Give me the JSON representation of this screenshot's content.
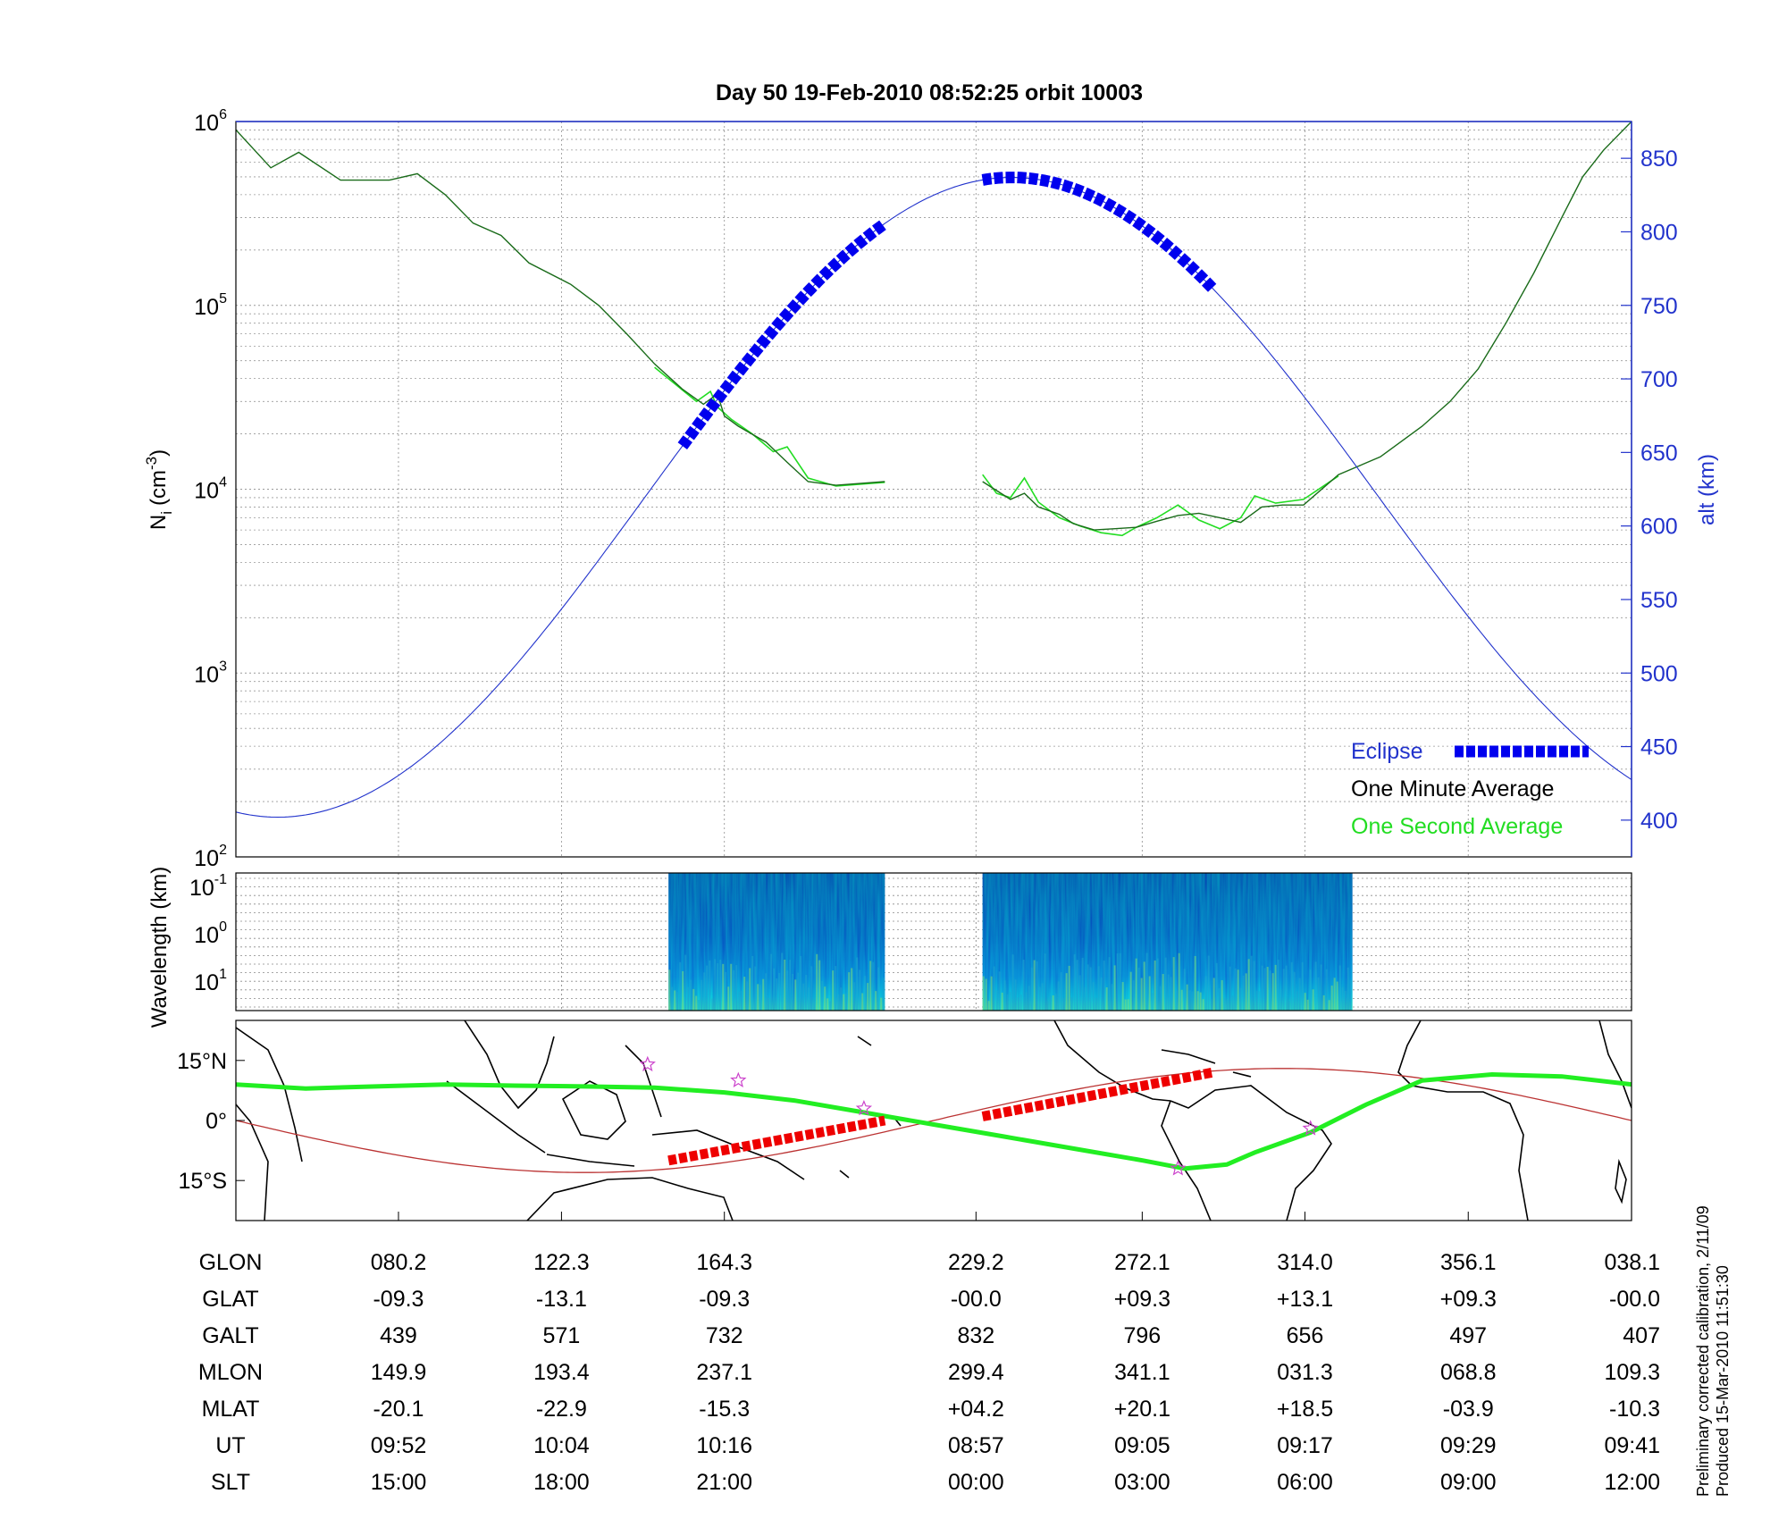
{
  "title": "Day 50  19-Feb-2010 08:52:25   orbit 10003",
  "credit": [
    "Preliminary corrected calibration, 2/11/09",
    "Produced 15-Mar-2010 11:51:30"
  ],
  "colors": {
    "density": "#1a6b1a",
    "density_fine": "#22dd22",
    "altitude": "#2233cc",
    "eclipse": "#0000ee",
    "track": "#22ee22",
    "eclipse_track": "#ee0000",
    "mag_equator": "#bb3333",
    "star": "#cc44cc"
  },
  "chart_data": [
    {
      "type": "line",
      "name": "density-altitude-panel",
      "ylabel_left": "N",
      "ylabel_left_sub": "i",
      "ylabel_left_unit_a": "(cm",
      "ylabel_left_unit_sup": "-3",
      "ylabel_left_unit_b": ")",
      "ylabel_right": "alt (km)",
      "y_left_scale": "log",
      "y_left_range": [
        100,
        1000000
      ],
      "y_left_ticks": [
        {
          "base": "10",
          "exp": "2",
          "value": 100
        },
        {
          "base": "10",
          "exp": "3",
          "value": 1000
        },
        {
          "base": "10",
          "exp": "4",
          "value": 10000
        },
        {
          "base": "10",
          "exp": "5",
          "value": 100000
        },
        {
          "base": "10",
          "exp": "6",
          "value": 1000000
        }
      ],
      "y_right_range": [
        375,
        875
      ],
      "y_right_ticks": [
        "400",
        "450",
        "500",
        "550",
        "600",
        "650",
        "700",
        "750",
        "800",
        "850"
      ],
      "x_range": [
        0,
        1
      ],
      "x_grid": [
        0.1165,
        0.2333,
        0.35,
        0.5303,
        0.6494,
        0.766,
        0.883
      ],
      "gap": [
        0.465,
        0.535
      ],
      "legend": {
        "placement": "bottom-right",
        "eclipse": "Eclipse",
        "minute": "One Minute Average",
        "second": "One Second Average"
      },
      "series": [
        {
          "name": "One Minute Average",
          "scale": "log-density",
          "segments": [
            [
              [
                0.0,
                900000
              ],
              [
                0.025,
                560000
              ],
              [
                0.045,
                680000
              ],
              [
                0.075,
                480000
              ],
              [
                0.11,
                480000
              ],
              [
                0.13,
                520000
              ],
              [
                0.15,
                400000
              ],
              [
                0.17,
                280000
              ],
              [
                0.19,
                240000
              ],
              [
                0.21,
                170000
              ],
              [
                0.24,
                130000
              ],
              [
                0.26,
                100000
              ],
              [
                0.28,
                70000
              ],
              [
                0.3,
                48000
              ],
              [
                0.32,
                35000
              ],
              [
                0.335,
                29000
              ],
              [
                0.345,
                33000
              ],
              [
                0.35,
                25000
              ],
              [
                0.36,
                22000
              ],
              [
                0.38,
                18000
              ],
              [
                0.395,
                14000
              ],
              [
                0.41,
                11000
              ],
              [
                0.43,
                10500
              ],
              [
                0.465,
                11000
              ]
            ],
            [
              [
                0.535,
                11000
              ],
              [
                0.555,
                8800
              ],
              [
                0.565,
                9500
              ],
              [
                0.575,
                8000
              ],
              [
                0.59,
                7300
              ],
              [
                0.6,
                6500
              ],
              [
                0.615,
                6000
              ],
              [
                0.63,
                6100
              ],
              [
                0.645,
                6200
              ],
              [
                0.66,
                6700
              ],
              [
                0.675,
                7200
              ],
              [
                0.69,
                7400
              ],
              [
                0.705,
                7000
              ],
              [
                0.72,
                6600
              ],
              [
                0.735,
                8000
              ],
              [
                0.75,
                8200
              ],
              [
                0.765,
                8200
              ],
              [
                0.79,
                12000
              ],
              [
                0.82,
                15000
              ],
              [
                0.85,
                22000
              ],
              [
                0.87,
                30000
              ],
              [
                0.89,
                45000
              ],
              [
                0.91,
                80000
              ],
              [
                0.93,
                150000
              ],
              [
                0.95,
                300000
              ],
              [
                0.965,
                500000
              ],
              [
                0.98,
                700000
              ],
              [
                1.0,
                1000000
              ]
            ]
          ]
        },
        {
          "name": "One Second Average",
          "scale": "log-density",
          "segments": [
            [
              [
                0.3,
                46000
              ],
              [
                0.33,
                30000
              ],
              [
                0.34,
                34000
              ],
              [
                0.345,
                28000
              ],
              [
                0.355,
                24000
              ],
              [
                0.37,
                20000
              ],
              [
                0.385,
                16000
              ],
              [
                0.395,
                17000
              ],
              [
                0.41,
                11500
              ],
              [
                0.43,
                10400
              ],
              [
                0.465,
                10900
              ]
            ],
            [
              [
                0.535,
                12000
              ],
              [
                0.545,
                9500
              ],
              [
                0.555,
                9000
              ],
              [
                0.565,
                11500
              ],
              [
                0.575,
                8500
              ],
              [
                0.59,
                7000
              ],
              [
                0.605,
                6300
              ],
              [
                0.62,
                5800
              ],
              [
                0.635,
                5600
              ],
              [
                0.645,
                6200
              ],
              [
                0.66,
                7000
              ],
              [
                0.675,
                8200
              ],
              [
                0.69,
                6800
              ],
              [
                0.705,
                6100
              ],
              [
                0.72,
                7000
              ],
              [
                0.73,
                9200
              ],
              [
                0.745,
                8400
              ],
              [
                0.765,
                8800
              ],
              [
                0.79,
                11800
              ]
            ]
          ]
        },
        {
          "name": "alt (km)",
          "scale": "altitude",
          "function": "cosine",
          "min_alt": 402,
          "max_alt": 837,
          "min_x": 0.03,
          "max_x": 0.556
        },
        {
          "name": "Eclipse",
          "scale": "altitude",
          "segments": [
            [
              0.32,
              0.465
            ],
            [
              0.535,
              0.7
            ]
          ]
        }
      ]
    },
    {
      "type": "heatmap",
      "name": "wavelength-spectrogram",
      "ylabel": "Wavelength (km)",
      "y_ticks": [
        {
          "base": "10",
          "exp": "-1"
        },
        {
          "base": "10",
          "exp": "0"
        },
        {
          "base": "10",
          "exp": "1"
        }
      ],
      "blocks": [
        [
          0.31,
          0.465
        ],
        [
          0.535,
          0.8
        ]
      ]
    },
    {
      "type": "line",
      "name": "ground-track-map",
      "y_ticks": [
        "15°N",
        "0°",
        "15°S"
      ],
      "y_range": [
        -25,
        25
      ],
      "series": [
        {
          "name": "ground-track",
          "points": [
            [
              0.0,
              9
            ],
            [
              0.05,
              8
            ],
            [
              0.1,
              8.5
            ],
            [
              0.15,
              9
            ],
            [
              0.2,
              8.7
            ],
            [
              0.25,
              8.5
            ],
            [
              0.3,
              8.2
            ],
            [
              0.35,
              7
            ],
            [
              0.4,
              5
            ],
            [
              0.45,
              2
            ],
            [
              0.5,
              -1
            ],
            [
              0.55,
              -4
            ],
            [
              0.6,
              -7
            ],
            [
              0.65,
              -10
            ],
            [
              0.68,
              -12
            ],
            [
              0.71,
              -11
            ],
            [
              0.73,
              -8
            ],
            [
              0.77,
              -3
            ],
            [
              0.81,
              4
            ],
            [
              0.85,
              10
            ],
            [
              0.9,
              11.5
            ],
            [
              0.95,
              11
            ],
            [
              1.0,
              9
            ]
          ]
        },
        {
          "name": "eclipse-track",
          "segments": [
            [
              [
                0.31,
                -10
              ],
              [
                0.465,
                0
              ]
            ],
            [
              [
                0.535,
                1
              ],
              [
                0.7,
                12
              ]
            ]
          ]
        },
        {
          "name": "magnetic-equator",
          "amplitude": 13
        },
        {
          "name": "stations",
          "points": [
            [
              0.295,
              14
            ],
            [
              0.36,
              10
            ],
            [
              0.45,
              3
            ],
            [
              0.675,
              -12
            ],
            [
              0.77,
              -2
            ]
          ]
        }
      ]
    },
    {
      "type": "table",
      "name": "orbit-table",
      "columns_x": [
        0.1165,
        0.2333,
        0.35,
        0.5303,
        0.6494,
        0.766,
        0.883,
        1.0
      ],
      "rows": [
        {
          "label": "GLON",
          "values": [
            "080.2",
            "122.3",
            "164.3",
            "229.2",
            "272.1",
            "314.0",
            "356.1",
            "038.1"
          ]
        },
        {
          "label": "GLAT",
          "values": [
            "-09.3",
            "-13.1",
            "-09.3",
            "-00.0",
            "+09.3",
            "+13.1",
            "+09.3",
            "-00.0"
          ]
        },
        {
          "label": "GALT",
          "values": [
            "439",
            "571",
            "732",
            "832",
            "796",
            "656",
            "497",
            "407"
          ]
        },
        {
          "label": "MLON",
          "values": [
            "149.9",
            "193.4",
            "237.1",
            "299.4",
            "341.1",
            "031.3",
            "068.8",
            "109.3"
          ]
        },
        {
          "label": "MLAT",
          "values": [
            "-20.1",
            "-22.9",
            "-15.3",
            "+04.2",
            "+20.1",
            "+18.5",
            "-03.9",
            "-10.3"
          ]
        },
        {
          "label": "UT",
          "values": [
            "09:52",
            "10:04",
            "10:16",
            "08:57",
            "09:05",
            "09:17",
            "09:29",
            "09:41"
          ]
        },
        {
          "label": "SLT",
          "values": [
            "15:00",
            "18:00",
            "21:00",
            "00:00",
            "03:00",
            "06:00",
            "09:00",
            "12:00"
          ]
        }
      ]
    }
  ]
}
